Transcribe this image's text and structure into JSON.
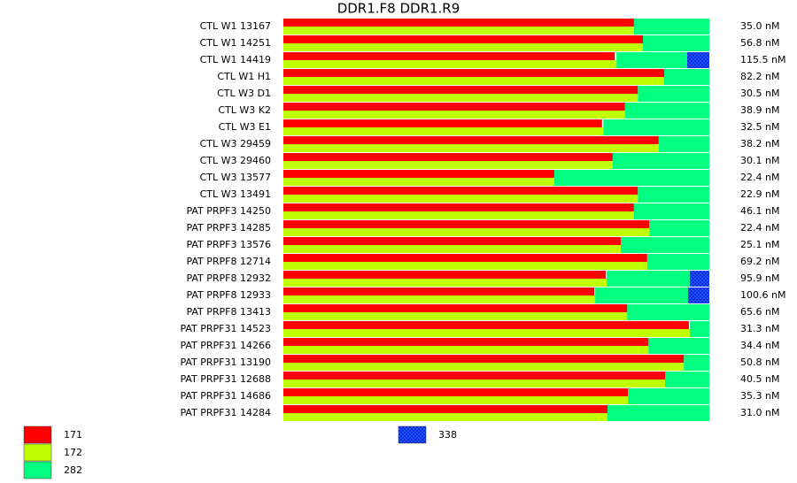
{
  "chart_data": {
    "type": "bar",
    "title": "DDR1.F8  DDR1.R9",
    "categories": [
      "CTL W1 13167",
      "CTL W1 14251",
      "CTL W1 14419",
      "CTL W1 H1",
      "CTL W3 D1",
      "CTL W3 K2",
      "CTL W3 E1",
      "CTL W3 29459",
      "CTL W3 29460",
      "CTL W3 13577",
      "CTL W3 13491",
      "PAT PRPF3 14250",
      "PAT PRPF3 14285",
      "PAT PRPF3 13576",
      "PAT PRPF8 12714",
      "PAT PRPF8 12932",
      "PAT PRPF8 12933",
      "PAT PRPF8 13413",
      "PAT PRPF31 14523",
      "PAT PRPF31 14266",
      "PAT PRPF31 13190",
      "PAT PRPF31 12688",
      "PAT PRPF31 14686",
      "PAT PRPF31 14284"
    ],
    "concentrations": [
      "35.0 nM",
      "56.8 nM",
      "115.5 nM",
      "82.2 nM",
      "30.5 nM",
      "38.9 nM",
      "32.5 nM",
      "38.2 nM",
      "30.1 nM",
      "22.4 nM",
      "22.9 nM",
      "46.1 nM",
      "22.4 nM",
      "25.1 nM",
      "69.2 nM",
      "95.9 nM",
      "100.6 nM",
      "65.6 nM",
      "31.3 nM",
      "34.4 nM",
      "50.8 nM",
      "40.5 nM",
      "35.3 nM",
      "31.0 nM"
    ],
    "series": [
      {
        "name": "171",
        "color": "#ff0000",
        "values": [
          82.3,
          84.4,
          77.8,
          89.4,
          83.2,
          80.2,
          74.8,
          88.1,
          77.3,
          63.6,
          83.2,
          82.3,
          85.9,
          79.2,
          85.4,
          75.7,
          73.0,
          80.7,
          95.2,
          85.7,
          94.0,
          89.6,
          80.9,
          76.1
        ]
      },
      {
        "name": "172",
        "color": "#bfff00",
        "values": [
          82.3,
          84.4,
          78.2,
          89.4,
          83.2,
          80.2,
          75.1,
          88.1,
          77.3,
          63.6,
          83.2,
          82.3,
          85.9,
          79.2,
          85.4,
          75.9,
          73.2,
          80.7,
          95.4,
          85.7,
          94.0,
          89.6,
          80.9,
          76.1
        ]
      },
      {
        "name": "282",
        "color": "#00ff80",
        "values": [
          17.7,
          15.6,
          16.6,
          10.6,
          16.8,
          19.8,
          24.9,
          11.9,
          22.7,
          36.4,
          16.8,
          17.7,
          14.1,
          20.8,
          14.6,
          19.5,
          21.8,
          19.3,
          4.6,
          14.3,
          6.0,
          10.4,
          19.1,
          23.9
        ]
      },
      {
        "name": "338",
        "color": "#1f4fff",
        "values": [
          0,
          0,
          5.2,
          0,
          0,
          0,
          0,
          0,
          0,
          0,
          0,
          0,
          0,
          0,
          0,
          4.6,
          5.0,
          0,
          0,
          0,
          0,
          0,
          0,
          0
        ]
      }
    ]
  }
}
